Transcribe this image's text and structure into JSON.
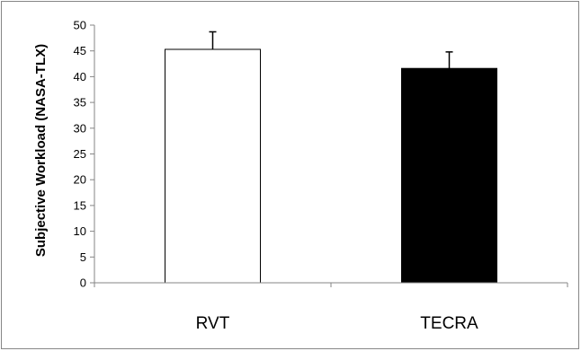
{
  "chart_data": {
    "type": "bar",
    "title": "",
    "xlabel": "",
    "ylabel": "Subjective Workload (NASA-TLX)",
    "ylim": [
      0,
      50
    ],
    "yticks": [
      0,
      5,
      10,
      15,
      20,
      25,
      30,
      35,
      40,
      45,
      50
    ],
    "categories": [
      "RVT",
      "TECRA"
    ],
    "values": [
      45.3,
      41.6
    ],
    "error_upper": [
      3.4,
      3.2
    ],
    "bar_fill_colors": [
      "#ffffff",
      "#000000"
    ],
    "bar_edge_color": "#000000",
    "grid": false,
    "legend": false
  }
}
